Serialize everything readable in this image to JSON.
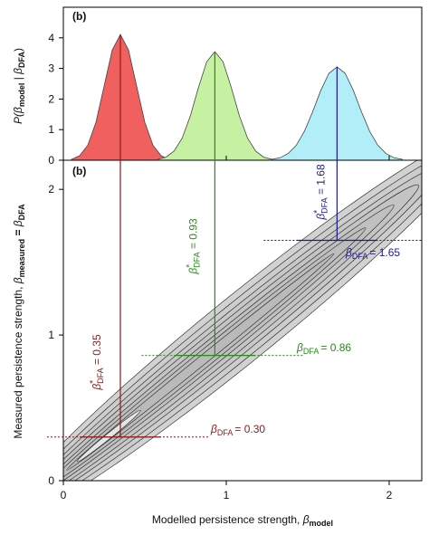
{
  "symbol": "β",
  "star": "*",
  "chart_data": [
    {
      "type": "area",
      "panel_label": "(b)",
      "xlim": [
        0,
        2.2
      ],
      "ylim": [
        0,
        5
      ],
      "yticks": [
        0,
        1,
        2,
        3,
        4
      ],
      "y_label": {
        "start": "P(",
        "sub_a": "model",
        "mid": " | ",
        "sub_b": "DFA",
        "end": ")"
      },
      "series": [
        {
          "color": "#f0605f",
          "line_color": "#7a1a1a",
          "x": [
            0.05,
            0.1,
            0.15,
            0.2,
            0.25,
            0.3,
            0.35,
            0.4,
            0.45,
            0.5,
            0.55,
            0.6,
            0.65
          ],
          "values": [
            0.03,
            0.15,
            0.49,
            1.24,
            2.42,
            3.6,
            4.11,
            3.6,
            2.42,
            1.24,
            0.49,
            0.15,
            0.03
          ]
        },
        {
          "color": "#c6f0a2",
          "line_color": "#2e8b2e",
          "x": [
            0.58,
            0.63,
            0.68,
            0.73,
            0.78,
            0.83,
            0.88,
            0.93,
            0.98,
            1.03,
            1.08,
            1.13,
            1.18,
            1.23,
            1.28
          ],
          "values": [
            0.03,
            0.1,
            0.3,
            0.73,
            1.46,
            2.39,
            3.22,
            3.55,
            3.22,
            2.39,
            1.46,
            0.73,
            0.3,
            0.1,
            0.03
          ]
        },
        {
          "color": "#b2eef8",
          "line_color": "#1c2c8c",
          "x": [
            1.28,
            1.33,
            1.38,
            1.43,
            1.48,
            1.53,
            1.58,
            1.63,
            1.68,
            1.73,
            1.78,
            1.83,
            1.88,
            1.93,
            1.98,
            2.03,
            2.08
          ],
          "values": [
            0.03,
            0.08,
            0.22,
            0.49,
            0.95,
            1.58,
            2.28,
            2.84,
            3.05,
            2.84,
            2.28,
            1.58,
            0.95,
            0.49,
            0.22,
            0.08,
            0.03
          ]
        }
      ]
    },
    {
      "type": "contour",
      "panel_label": "(b)",
      "xlim": [
        0,
        2.2
      ],
      "ylim": [
        0,
        2.2
      ],
      "xticks": [
        0,
        1,
        2
      ],
      "yticks": [
        0,
        1,
        2
      ],
      "x_label": {
        "text": "Modelled persistence strength, ",
        "sub": "model"
      },
      "y_label": {
        "text": "Measured persistence strength, ",
        "sub_a": "measured",
        "mid": " = ",
        "sub_b": "DFA"
      },
      "estimates": [
        {
          "beta_star": 0.35,
          "beta_dfa": 0.3,
          "color": "#8b1a1a",
          "star_label": " = 0.35",
          "dfa_label": "= 0.30"
        },
        {
          "beta_star": 0.93,
          "beta_dfa": 0.86,
          "color": "#2a8a1a",
          "star_label": " = 0.93",
          "dfa_label": "= 0.86"
        },
        {
          "beta_star": 1.68,
          "beta_dfa": 1.65,
          "color": "#1c1c8c",
          "star_label": " = 1.68",
          "dfa_label": "= 1.65"
        }
      ]
    }
  ]
}
